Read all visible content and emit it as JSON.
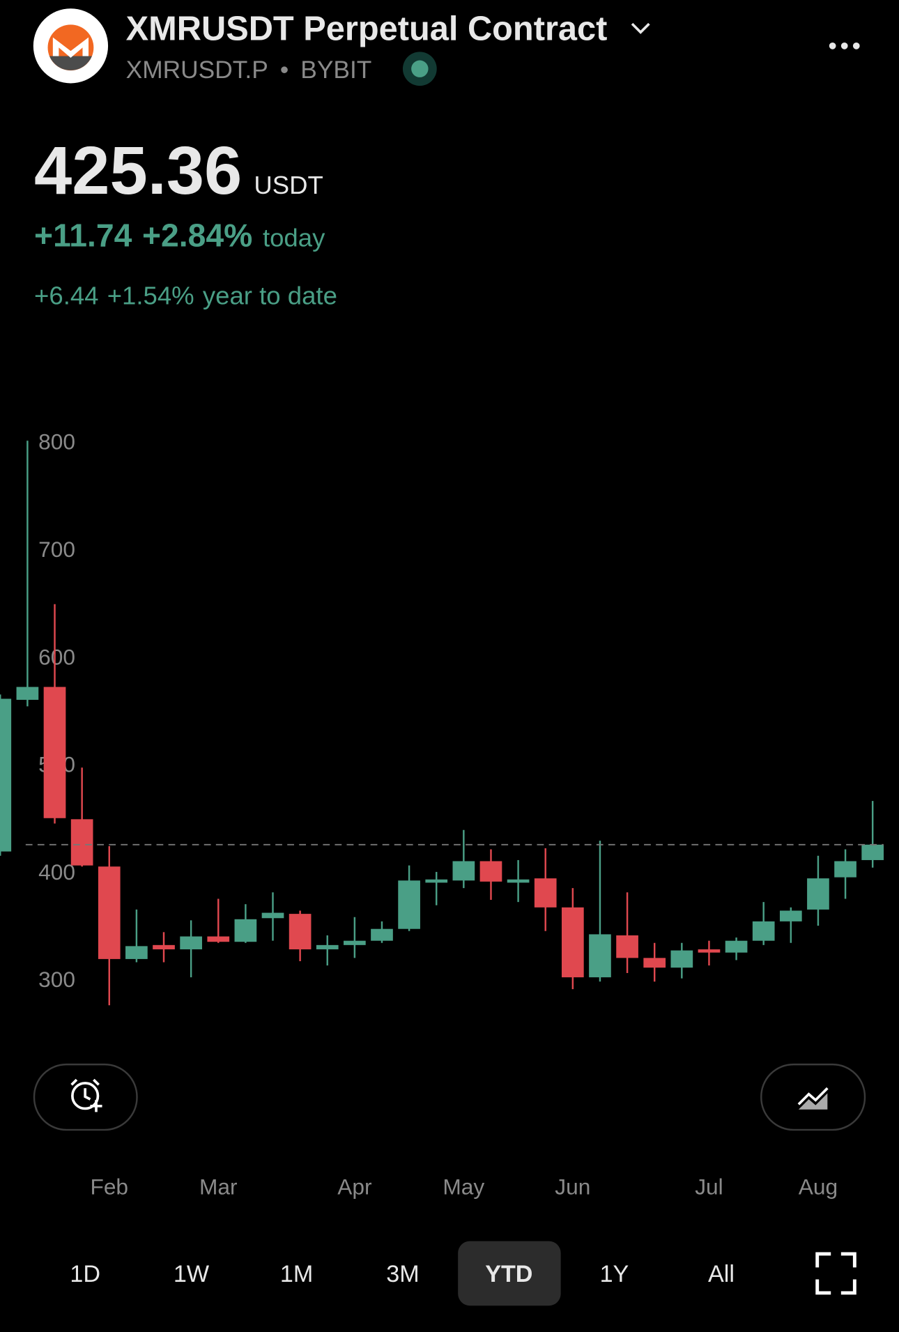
{
  "header": {
    "title": "XMRUSDT Perpetual Contract",
    "symbol": "XMRUSDT.P",
    "exchange": "BYBIT"
  },
  "price": {
    "value": "425.36",
    "currency": "USDT"
  },
  "today": {
    "change": "+11.74",
    "percent": "+2.84%",
    "label": "today"
  },
  "ytd": {
    "change": "+6.44",
    "percent": "+1.54%",
    "label": "year to date"
  },
  "chart_data": {
    "type": "candlestick",
    "categories": [
      null,
      null,
      null,
      null,
      null,
      null,
      null,
      null,
      null,
      null,
      null,
      null,
      null,
      null,
      null,
      null,
      null,
      null,
      null,
      null,
      null,
      null,
      null,
      null,
      null,
      null,
      null,
      null,
      null,
      null,
      null,
      null,
      null
    ],
    "open": [
      419,
      560,
      572,
      449,
      405,
      319,
      332,
      328,
      340,
      335,
      357,
      361,
      328,
      332,
      336,
      347,
      390,
      392,
      410,
      390,
      394,
      367,
      302,
      341,
      320,
      311,
      328,
      325,
      336,
      354,
      365,
      395,
      411
    ],
    "high": [
      565,
      801,
      649,
      497,
      424,
      365,
      344,
      355,
      375,
      370,
      381,
      364,
      341,
      358,
      354,
      406,
      400,
      439,
      421,
      411,
      422,
      385,
      429,
      381,
      334,
      334,
      336,
      339,
      372,
      367,
      415,
      421,
      466
    ],
    "low": [
      415,
      554,
      445,
      405,
      276,
      316,
      316,
      302,
      334,
      334,
      336,
      317,
      313,
      320,
      334,
      345,
      369,
      385,
      374,
      372,
      345,
      291,
      298,
      306,
      298,
      301,
      313,
      318,
      332,
      334,
      350,
      375,
      404
    ],
    "close": [
      561,
      572,
      450,
      406,
      319,
      331,
      328,
      340,
      335,
      356,
      362,
      328,
      332,
      336,
      347,
      392,
      393,
      410,
      391,
      393,
      367,
      302,
      342,
      320,
      311,
      327,
      325,
      336,
      354,
      364,
      394,
      410,
      425.36
    ],
    "up_color": "#4a9f86",
    "down_color": "#e0484f",
    "ylim": [
      270,
      810
    ],
    "yticks": [
      300,
      400,
      500,
      600,
      700,
      800
    ],
    "xticks": [
      {
        "value": 4,
        "label": "Feb"
      },
      {
        "value": 8,
        "label": "Mar"
      },
      {
        "value": 13,
        "label": "Apr"
      },
      {
        "value": 17,
        "label": "May"
      },
      {
        "value": 21,
        "label": "Jun"
      },
      {
        "value": 26,
        "label": "Jul"
      },
      {
        "value": 30,
        "label": "Aug"
      }
    ],
    "last_price_line": 425.36
  },
  "range_buttons": [
    "1D",
    "1W",
    "1M",
    "3M",
    "YTD",
    "1Y",
    "All"
  ],
  "selected_range": 4
}
